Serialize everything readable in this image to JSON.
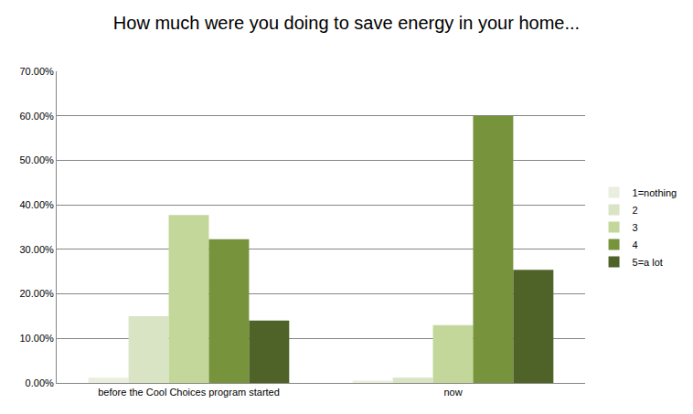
{
  "chart_data": {
    "type": "bar",
    "title": "How much were you doing to save energy in your home...",
    "categories": [
      "before the Cool Choices program started",
      "now"
    ],
    "series": [
      {
        "name": "1=nothing",
        "color": "#eaeedf",
        "values": [
          1.2,
          0.5
        ]
      },
      {
        "name": "2",
        "color": "#d9e4c4",
        "values": [
          15.0,
          1.2
        ]
      },
      {
        "name": "3",
        "color": "#c4d79b",
        "values": [
          37.7,
          13.0
        ]
      },
      {
        "name": "4",
        "color": "#77933c",
        "values": [
          32.3,
          60.0
        ]
      },
      {
        "name": "5=a lot",
        "color": "#4f6228",
        "values": [
          14.0,
          25.4
        ]
      }
    ],
    "ylim": [
      0,
      70
    ],
    "yticks": [
      {
        "value": 0,
        "label": "0.00%"
      },
      {
        "value": 10,
        "label": "10.00%"
      },
      {
        "value": 20,
        "label": "20.00%"
      },
      {
        "value": 30,
        "label": "30.00%"
      },
      {
        "value": 40,
        "label": "40.00%"
      },
      {
        "value": 50,
        "label": "50.00%"
      },
      {
        "value": 60,
        "label": "60.00%"
      },
      {
        "value": 70,
        "label": "70.00%"
      }
    ],
    "grid": true,
    "legend": "right"
  }
}
